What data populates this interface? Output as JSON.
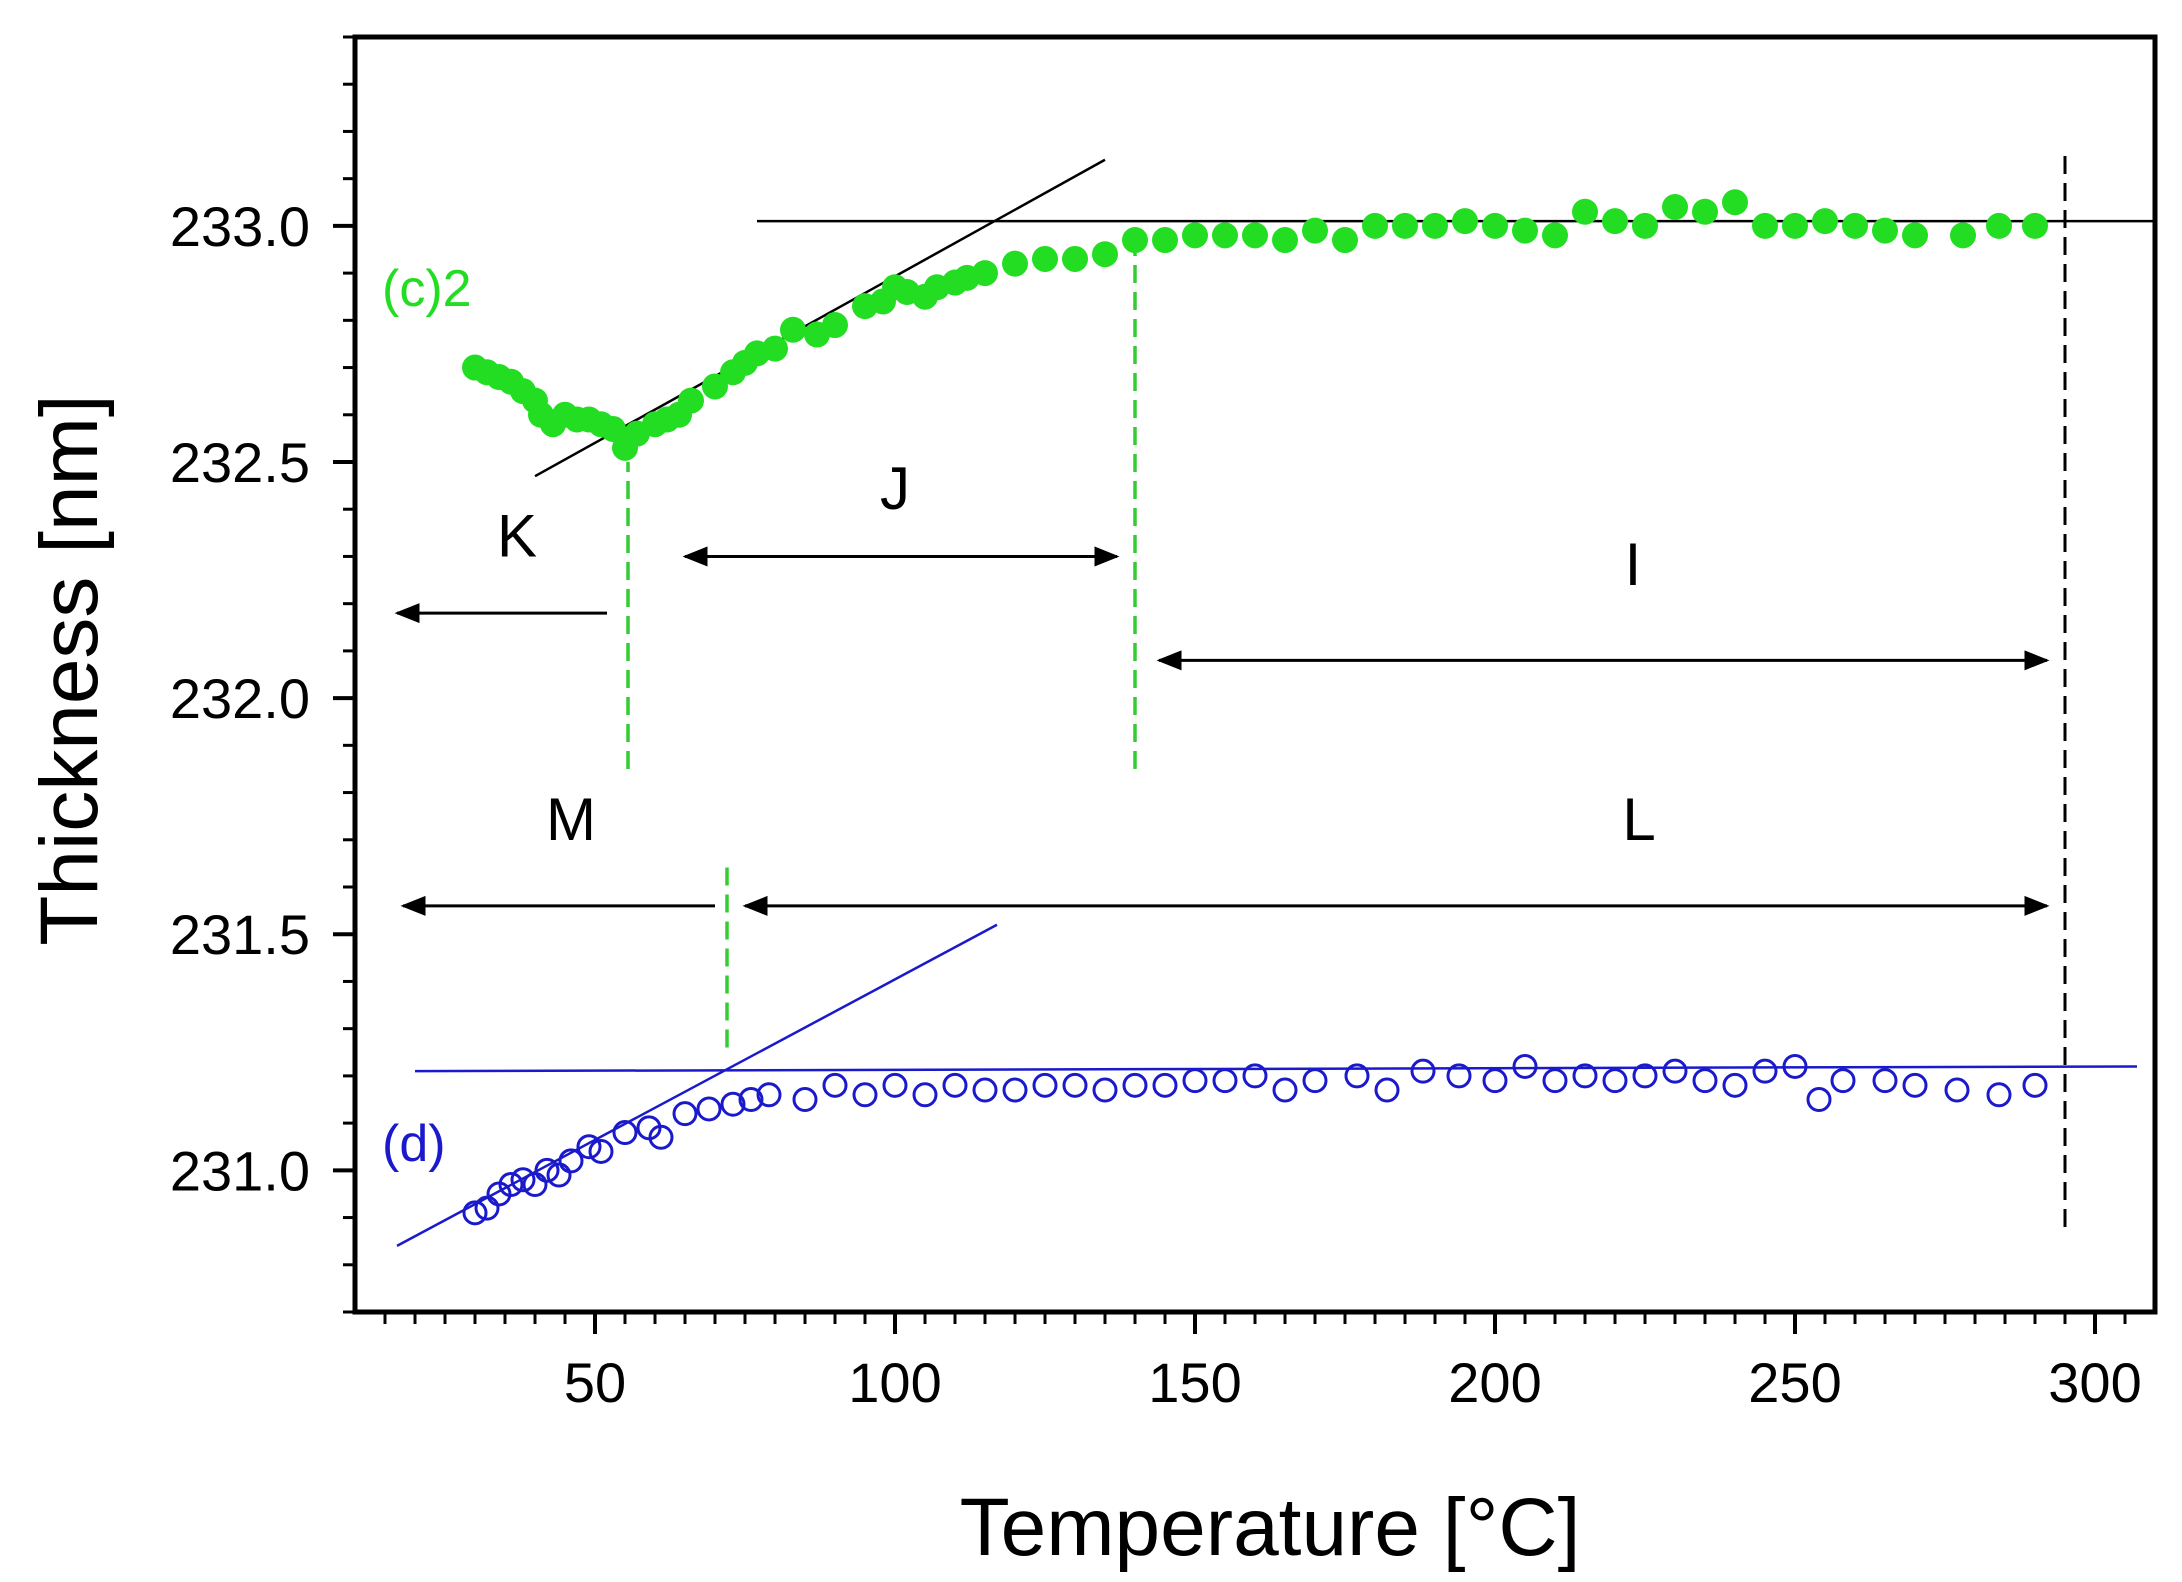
{
  "chart_data": {
    "type": "scatter",
    "xlabel": "Temperature",
    "xlabel_unit": "[°C]",
    "ylabel": "Thickness [nm]",
    "xlim": [
      10,
      310
    ],
    "ylim": [
      230.7,
      233.4
    ],
    "xticks": [
      50,
      100,
      150,
      200,
      250,
      300
    ],
    "xtick_labels": [
      "50",
      "100",
      "150",
      "200",
      "250",
      "300"
    ],
    "yticks": [
      231.0,
      231.5,
      232.0,
      232.5,
      233.0
    ],
    "ytick_labels": [
      "231.0",
      "231.5",
      "232.0",
      "232.5",
      "233.0"
    ],
    "colors": {
      "green": "#22dd22",
      "blue": "#1a1acc",
      "dash_green": "#33cc33",
      "black": "#000000"
    },
    "series": [
      {
        "name": "(c)2",
        "marker": "filled-circle",
        "color": "#22dd22",
        "x": [
          30,
          32,
          34,
          36,
          38,
          40,
          41,
          43,
          45,
          47,
          49,
          51,
          53,
          55,
          57,
          60,
          62,
          64,
          66,
          70,
          73,
          75,
          77,
          80,
          83,
          87,
          90,
          95,
          98,
          100,
          102,
          105,
          107,
          110,
          112,
          115,
          120,
          125,
          130,
          135,
          140,
          145,
          150,
          155,
          160,
          165,
          170,
          175,
          180,
          185,
          190,
          195,
          200,
          205,
          210,
          215,
          220,
          225,
          230,
          235,
          240,
          245,
          250,
          255,
          260,
          265,
          270,
          278,
          284,
          290
        ],
        "y": [
          232.7,
          232.69,
          232.68,
          232.67,
          232.65,
          232.63,
          232.6,
          232.58,
          232.6,
          232.59,
          232.59,
          232.58,
          232.57,
          232.53,
          232.56,
          232.58,
          232.59,
          232.6,
          232.63,
          232.66,
          232.69,
          232.71,
          232.73,
          232.74,
          232.78,
          232.77,
          232.79,
          232.83,
          232.84,
          232.87,
          232.86,
          232.85,
          232.87,
          232.88,
          232.89,
          232.9,
          232.92,
          232.93,
          232.93,
          232.94,
          232.97,
          232.97,
          232.98,
          232.98,
          232.98,
          232.97,
          232.99,
          232.97,
          233.0,
          233.0,
          233.0,
          233.01,
          233.0,
          232.99,
          232.98,
          233.03,
          233.01,
          233.0,
          233.04,
          233.03,
          233.05,
          233.0,
          233.0,
          233.01,
          233.0,
          232.99,
          232.98,
          232.98,
          233.0,
          233.0
        ]
      },
      {
        "name": "(d)",
        "marker": "open-circle",
        "color": "#1a1acc",
        "x": [
          30,
          32,
          34,
          36,
          38,
          40,
          42,
          44,
          46,
          49,
          51,
          55,
          59,
          61,
          65,
          69,
          73,
          76,
          79,
          85,
          90,
          95,
          100,
          105,
          110,
          115,
          120,
          125,
          130,
          135,
          140,
          145,
          150,
          155,
          160,
          165,
          170,
          177,
          182,
          188,
          194,
          200,
          205,
          210,
          215,
          220,
          225,
          230,
          235,
          240,
          245,
          250,
          254,
          258,
          265,
          270,
          277,
          284,
          290
        ],
        "y": [
          230.91,
          230.92,
          230.95,
          230.97,
          230.98,
          230.97,
          231.0,
          230.99,
          231.02,
          231.05,
          231.04,
          231.08,
          231.09,
          231.07,
          231.12,
          231.13,
          231.14,
          231.15,
          231.16,
          231.15,
          231.18,
          231.16,
          231.18,
          231.16,
          231.18,
          231.17,
          231.17,
          231.18,
          231.18,
          231.17,
          231.18,
          231.18,
          231.19,
          231.19,
          231.2,
          231.17,
          231.19,
          231.2,
          231.17,
          231.21,
          231.2,
          231.19,
          231.22,
          231.19,
          231.2,
          231.19,
          231.2,
          231.21,
          231.19,
          231.18,
          231.21,
          231.22,
          231.15,
          231.19,
          231.19,
          231.18,
          231.17,
          231.16,
          231.18
        ]
      }
    ],
    "fit_lines": [
      {
        "name": "c2-slope",
        "color": "#000000",
        "x": [
          40,
          135
        ],
        "y": [
          232.47,
          233.14
        ]
      },
      {
        "name": "c2-plateau",
        "color": "#000000",
        "x": [
          77,
          310
        ],
        "y": [
          233.01,
          233.01
        ]
      },
      {
        "name": "d-slope",
        "color": "#1a1acc",
        "x": [
          17,
          117
        ],
        "y": [
          230.84,
          231.52
        ]
      },
      {
        "name": "d-plateau",
        "color": "#1a1acc",
        "x": [
          20,
          307
        ],
        "y": [
          231.21,
          231.22
        ]
      }
    ],
    "vlines": [
      {
        "name": "k-j-boundary",
        "color": "#33cc33",
        "dash": true,
        "x": 55.5,
        "y": [
          231.85,
          232.5
        ]
      },
      {
        "name": "j-i-boundary",
        "color": "#33cc33",
        "dash": true,
        "x": 140,
        "y": [
          231.85,
          232.97
        ]
      },
      {
        "name": "m-l-boundary",
        "color": "#33cc33",
        "dash": true,
        "x": 72,
        "y": [
          231.26,
          231.65
        ]
      },
      {
        "name": "end-line",
        "color": "#000000",
        "dash": true,
        "x": 295,
        "y": [
          230.88,
          233.16
        ]
      }
    ],
    "ranges": [
      {
        "label": "K",
        "y": 232.18,
        "x_from": 52,
        "x_to": 17,
        "arrow": "end",
        "label_x": 37,
        "label_y": 232.3
      },
      {
        "label": "J",
        "y": 232.3,
        "x_from": 65,
        "x_to": 137,
        "arrow": "both",
        "label_x": 100,
        "label_y": 232.4
      },
      {
        "label": "I",
        "y": 232.08,
        "x_from": 144,
        "x_to": 292,
        "arrow": "both",
        "label_x": 223,
        "label_y": 232.24
      },
      {
        "label": "M",
        "y": 231.56,
        "x_from": 70,
        "x_to": 18,
        "arrow": "end",
        "label_x": 46,
        "label_y": 231.7
      },
      {
        "label": "L",
        "y": 231.56,
        "x_from": 75,
        "x_to": 292,
        "arrow": "both",
        "label_x": 224,
        "label_y": 231.7
      }
    ],
    "annotations": [
      {
        "text": "(c)2",
        "color": "#22dd22",
        "x": 14.5,
        "y": 232.83
      },
      {
        "text": "(d)",
        "color": "#1a1acc",
        "x": 14.5,
        "y": 231.02
      }
    ],
    "title": ""
  }
}
